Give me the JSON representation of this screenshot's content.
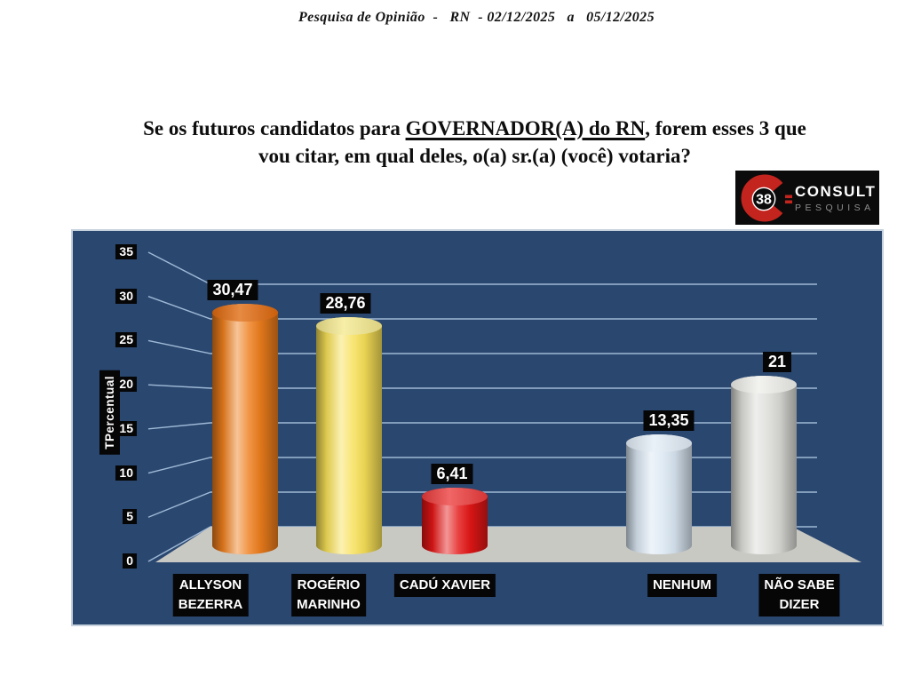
{
  "header": {
    "title": "Pesquisa de Opinião  -   RN  - 02/12/2025   a   05/12/2025"
  },
  "question": {
    "line1_pre": "Se os futuros candidatos para ",
    "line1_underlined": "GOVERNADOR(A) do RN",
    "line1_post": ", forem esses 3 que",
    "line2": "vou citar, em qual deles, o(a) sr.(a) (você) votaria?"
  },
  "logo": {
    "number": "38",
    "name": "CONSULT",
    "subtitle": "PESQUISA",
    "accent_color": "#C3241E",
    "bg_color": "#0B0B0B"
  },
  "chart_data": {
    "type": "bar",
    "subtype": "3d-cylinder",
    "title": "",
    "xlabel": "",
    "ylabel": "TPercentual",
    "categories": [
      "ALLYSON\nBEZERRA",
      "ROGÉRIO\nMARINHO",
      "CADÚ XAVIER",
      "NENHUM",
      "NÃO SABE\nDIZER"
    ],
    "values": [
      30.47,
      28.76,
      6.41,
      13.35,
      21
    ],
    "value_labels": [
      "30,47",
      "28,76",
      "6,41",
      "13,35",
      "21"
    ],
    "bar_colors": [
      {
        "base": "#ED7D1C",
        "top": "#E0690D"
      },
      {
        "base": "#F7E057",
        "top": "#F5E98F"
      },
      {
        "base": "#E41616",
        "top": "#ED3B3B"
      },
      {
        "base": "#D9E6F2",
        "top": "#E3EDF7"
      },
      {
        "base": "#DBDBD7",
        "top": "#EFEFEB"
      }
    ],
    "ylim": [
      0,
      35
    ],
    "yticks": [
      0,
      5,
      10,
      15,
      20,
      25,
      30,
      35
    ],
    "grid": true,
    "legend": false,
    "background_color": "#2A476F",
    "gridline_color": "#9FB9D6",
    "floor_color": "#C9C9C4",
    "label_bg": "#060606",
    "label_fg": "#FFFFFF"
  }
}
